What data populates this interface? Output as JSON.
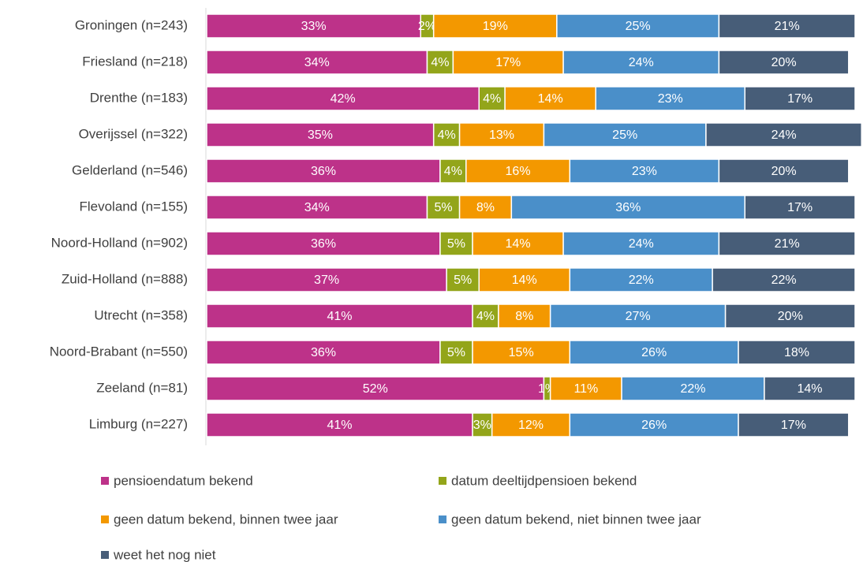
{
  "chart_data": {
    "type": "stacked-bar-horizontal",
    "categories": [
      "Groningen (n=243)",
      "Friesland (n=218)",
      "Drenthe (n=183)",
      "Overijssel (n=322)",
      "Gelderland (n=546)",
      "Flevoland (n=155)",
      "Noord-Holland (n=902)",
      "Zuid-Holland (n=888)",
      "Utrecht (n=358)",
      "Noord-Brabant (n=550)",
      "Zeeland (n=81)",
      "Limburg (n=227)"
    ],
    "xlim": [
      0,
      100
    ],
    "series": [
      {
        "name": "pensioendatum bekend",
        "color": "#bd3289",
        "values": [
          33,
          34,
          42,
          35,
          36,
          34,
          36,
          37,
          41,
          36,
          52,
          41
        ],
        "value_labels": [
          "33%",
          "34%",
          "42%",
          "35%",
          "36%",
          "34%",
          "36%",
          "37%",
          "41%",
          "36%",
          "52%",
          "41%"
        ]
      },
      {
        "name": "datum deeltijdpensioen bekend",
        "color": "#93a51a",
        "values": [
          2,
          4,
          4,
          4,
          4,
          5,
          5,
          5,
          4,
          5,
          1,
          3
        ],
        "value_labels": [
          "2%",
          "4%",
          "4%",
          "4%",
          "4%",
          "5%",
          "5%",
          "5%",
          "4%",
          "5%",
          "1%",
          "3%"
        ]
      },
      {
        "name": "geen datum bekend, binnen twee jaar",
        "color": "#f39800",
        "values": [
          19,
          17,
          14,
          13,
          16,
          8,
          14,
          14,
          8,
          15,
          11,
          12
        ],
        "value_labels": [
          "19%",
          "17%",
          "14%",
          "13%",
          "16%",
          "8%",
          "14%",
          "14%",
          "8%",
          "15%",
          "11%",
          "12%"
        ]
      },
      {
        "name": "geen datum bekend, niet binnen twee jaar",
        "color": "#4a8fc9",
        "values": [
          25,
          24,
          23,
          25,
          23,
          36,
          24,
          22,
          27,
          26,
          22,
          26
        ],
        "value_labels": [
          "25%",
          "24%",
          "23%",
          "25%",
          "23%",
          "36%",
          "24%",
          "22%",
          "27%",
          "26%",
          "22%",
          "26%"
        ]
      },
      {
        "name": "weet het nog niet",
        "color": "#475d78",
        "values": [
          21,
          20,
          17,
          24,
          20,
          17,
          21,
          22,
          20,
          18,
          14,
          17
        ],
        "value_labels": [
          "21%",
          "20%",
          "17%",
          "24%",
          "20%",
          "17%",
          "21%",
          "22%",
          "20%",
          "18%",
          "14%",
          "17%"
        ]
      }
    ]
  }
}
